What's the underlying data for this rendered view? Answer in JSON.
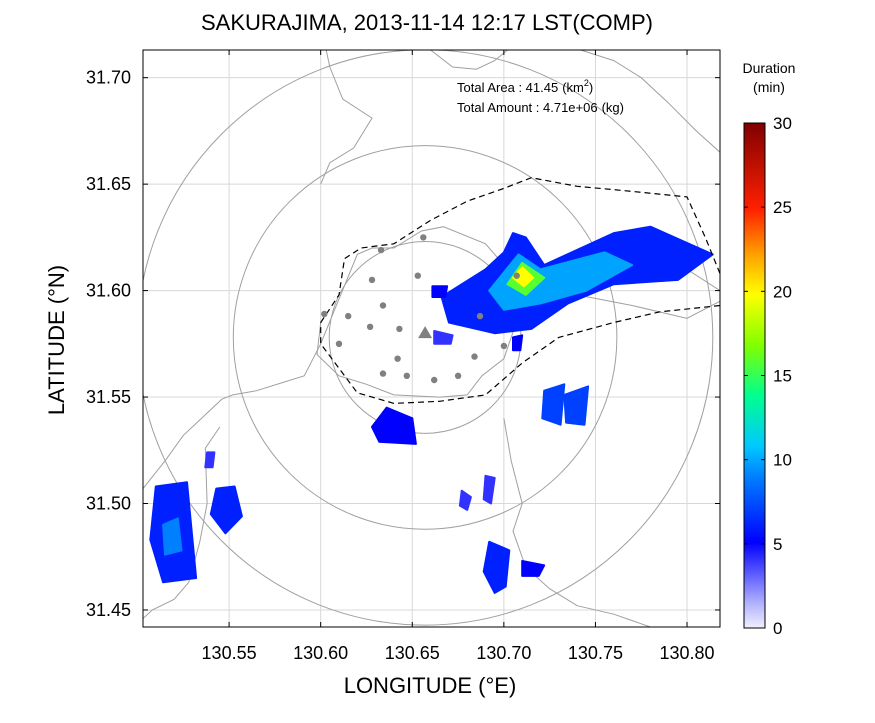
{
  "chart_data": {
    "type": "heatmap",
    "title": "SAKURAJIMA, 2013-11-14 12:17 LST(COMP)",
    "xlabel": "LONGITUDE (°E)",
    "ylabel": "LATITUDE (°N)",
    "xlim": [
      130.503,
      130.818
    ],
    "ylim": [
      31.442,
      31.713
    ],
    "xticks": [
      130.55,
      130.6,
      130.65,
      130.7,
      130.75,
      130.8
    ],
    "xtick_labels": [
      "130.55",
      "130.60",
      "130.65",
      "130.70",
      "130.75",
      "130.80"
    ],
    "yticks": [
      31.45,
      31.5,
      31.55,
      31.6,
      31.65,
      31.7
    ],
    "ytick_labels": [
      "31.45",
      "31.50",
      "31.55",
      "31.60",
      "31.65",
      "31.70"
    ],
    "grid": true,
    "annotation": {
      "area_label": "Total Area",
      "area_sep": " : ",
      "area_value": "41.45",
      "area_unit_base": "(km",
      "area_unit_exp": "2",
      "area_unit_close": ")",
      "amount_label": "Total Amount",
      "amount_sep": " : ",
      "amount_value": "4.71e+06",
      "amount_unit": "(kg)"
    },
    "colorbar": {
      "title_line1": "Duration",
      "title_line2": "(min)",
      "min": 0,
      "max": 30,
      "ticks": [
        0,
        5,
        10,
        15,
        20,
        25,
        30
      ],
      "tick_labels": [
        "0",
        "5",
        "10",
        "15",
        "20",
        "25",
        "30"
      ],
      "colors": [
        "#e8e8ff",
        "#0000ff",
        "#00c8ff",
        "#00ff80",
        "#ffff00",
        "#ff8000",
        "#ff0000",
        "#800000"
      ]
    },
    "range_rings": {
      "center": [
        130.657,
        31.578
      ],
      "radii_km": [
        5,
        10,
        15
      ]
    },
    "vent": [
      130.657,
      31.58
    ],
    "stations": [
      [
        130.628,
        31.605
      ],
      [
        130.633,
        31.619
      ],
      [
        130.656,
        31.625
      ],
      [
        130.653,
        31.607
      ],
      [
        130.602,
        31.589
      ],
      [
        130.615,
        31.588
      ],
      [
        130.627,
        31.583
      ],
      [
        130.634,
        31.593
      ],
      [
        130.643,
        31.582
      ],
      [
        130.61,
        31.575
      ],
      [
        130.642,
        31.568
      ],
      [
        130.634,
        31.561
      ],
      [
        130.647,
        31.56
      ],
      [
        130.662,
        31.558
      ],
      [
        130.675,
        31.56
      ],
      [
        130.684,
        31.569
      ],
      [
        130.687,
        31.588
      ],
      [
        130.7,
        31.574
      ],
      [
        130.707,
        31.607
      ]
    ],
    "deposits": [
      {
        "name": "main-plume",
        "polygon": [
          [
            130.666,
            31.597
          ],
          [
            130.69,
            31.61
          ],
          [
            130.7,
            31.618
          ],
          [
            130.705,
            31.627
          ],
          [
            130.712,
            31.625
          ],
          [
            130.722,
            31.612
          ],
          [
            130.76,
            31.627
          ],
          [
            130.78,
            31.63
          ],
          [
            130.814,
            31.617
          ],
          [
            130.795,
            31.605
          ],
          [
            130.76,
            31.603
          ],
          [
            130.735,
            31.594
          ],
          [
            130.715,
            31.582
          ],
          [
            130.695,
            31.58
          ],
          [
            130.67,
            31.585
          ]
        ],
        "duration": 6
      },
      {
        "name": "plume-mid",
        "polygon": [
          [
            130.692,
            31.6
          ],
          [
            130.708,
            31.617
          ],
          [
            130.72,
            31.61
          ],
          [
            130.755,
            31.618
          ],
          [
            130.77,
            31.612
          ],
          [
            130.745,
            31.6
          ],
          [
            130.72,
            31.594
          ],
          [
            130.7,
            31.591
          ]
        ],
        "duration": 10
      },
      {
        "name": "plume-core",
        "polygon": [
          [
            130.702,
            31.603
          ],
          [
            130.71,
            31.613
          ],
          [
            130.722,
            31.606
          ],
          [
            130.712,
            31.598
          ]
        ],
        "duration": 16
      },
      {
        "name": "plume-peak",
        "polygon": [
          [
            130.705,
            31.606
          ],
          [
            130.71,
            31.611
          ],
          [
            130.716,
            31.606
          ],
          [
            130.711,
            31.602
          ]
        ],
        "duration": 20
      },
      {
        "name": "patch-small",
        "polygon": [
          [
            130.705,
            31.578
          ],
          [
            130.71,
            31.579
          ],
          [
            130.709,
            31.572
          ],
          [
            130.705,
            31.572
          ]
        ],
        "duration": 5
      },
      {
        "name": "patch-west",
        "polygon": [
          [
            130.636,
            31.545
          ],
          [
            130.65,
            31.54
          ],
          [
            130.652,
            31.528
          ],
          [
            130.632,
            31.529
          ],
          [
            130.628,
            31.536
          ]
        ],
        "duration": 5
      },
      {
        "name": "patch-east-1",
        "polygon": [
          [
            130.722,
            31.553
          ],
          [
            130.733,
            31.556
          ],
          [
            130.731,
            31.537
          ],
          [
            130.721,
            31.54
          ]
        ],
        "duration": 7
      },
      {
        "name": "patch-east-2",
        "polygon": [
          [
            130.733,
            31.551
          ],
          [
            130.746,
            31.555
          ],
          [
            130.744,
            31.537
          ],
          [
            130.734,
            31.538
          ]
        ],
        "duration": 7
      },
      {
        "name": "patch-far-west",
        "polygon": [
          [
            130.51,
            31.508
          ],
          [
            130.527,
            31.51
          ],
          [
            130.532,
            31.465
          ],
          [
            130.514,
            31.463
          ],
          [
            130.507,
            31.483
          ]
        ],
        "duration": 6
      },
      {
        "name": "patch-far-west-core",
        "polygon": [
          [
            130.514,
            31.49
          ],
          [
            130.522,
            31.493
          ],
          [
            130.524,
            31.478
          ],
          [
            130.515,
            31.476
          ]
        ],
        "duration": 9
      },
      {
        "name": "patch-oval",
        "polygon": [
          [
            130.543,
            31.507
          ],
          [
            130.553,
            31.508
          ],
          [
            130.557,
            31.494
          ],
          [
            130.548,
            31.486
          ],
          [
            130.54,
            31.495
          ]
        ],
        "duration": 6
      },
      {
        "name": "patch-south",
        "polygon": [
          [
            130.692,
            31.482
          ],
          [
            130.703,
            31.478
          ],
          [
            130.701,
            31.461
          ],
          [
            130.695,
            31.458
          ],
          [
            130.689,
            31.468
          ]
        ],
        "duration": 6
      },
      {
        "name": "patch-south-2",
        "polygon": [
          [
            130.71,
            31.473
          ],
          [
            130.722,
            31.471
          ],
          [
            130.719,
            31.466
          ],
          [
            130.71,
            31.466
          ]
        ],
        "duration": 5
      },
      {
        "name": "speckle-1",
        "polygon": [
          [
            130.677,
            31.506
          ],
          [
            130.682,
            31.503
          ],
          [
            130.68,
            31.497
          ],
          [
            130.676,
            31.499
          ]
        ],
        "duration": 4
      },
      {
        "name": "speckle-2",
        "polygon": [
          [
            130.69,
            31.513
          ],
          [
            130.695,
            31.512
          ],
          [
            130.693,
            31.5
          ],
          [
            130.689,
            31.502
          ]
        ],
        "duration": 4
      },
      {
        "name": "speckle-3",
        "polygon": [
          [
            130.662,
            31.581
          ],
          [
            130.672,
            31.579
          ],
          [
            130.671,
            31.575
          ],
          [
            130.662,
            31.575
          ]
        ],
        "duration": 4
      },
      {
        "name": "speckle-4",
        "polygon": [
          [
            130.661,
            31.602
          ],
          [
            130.669,
            31.602
          ],
          [
            130.668,
            31.597
          ],
          [
            130.661,
            31.597
          ]
        ],
        "duration": 5
      },
      {
        "name": "speckle-5",
        "polygon": [
          [
            130.538,
            31.524
          ],
          [
            130.542,
            31.524
          ],
          [
            130.541,
            31.517
          ],
          [
            130.537,
            31.517
          ]
        ],
        "duration": 4
      }
    ],
    "coastlines": [
      [
        [
          130.503,
          31.507
        ],
        [
          130.515,
          31.52
        ],
        [
          130.525,
          31.532
        ],
        [
          130.535,
          31.54
        ],
        [
          130.546,
          31.549
        ],
        [
          130.552,
          31.551
        ],
        [
          130.565,
          31.553
        ],
        [
          130.58,
          31.557
        ],
        [
          130.591,
          31.56
        ],
        [
          130.6,
          31.575
        ],
        [
          130.61,
          31.596
        ],
        [
          130.62,
          31.617
        ],
        [
          130.628,
          31.62
        ],
        [
          130.64,
          31.62
        ],
        [
          130.655,
          31.628
        ],
        [
          130.667,
          31.63
        ],
        [
          130.69,
          31.622
        ],
        [
          130.7,
          31.612
        ],
        [
          130.715,
          31.603
        ],
        [
          130.74,
          31.598
        ],
        [
          130.77,
          31.593
        ],
        [
          130.8,
          31.587
        ],
        [
          130.818,
          31.595
        ]
      ],
      [
        [
          130.818,
          31.6
        ],
        [
          130.8,
          31.61
        ],
        [
          130.78,
          31.615
        ],
        [
          130.76,
          31.614
        ],
        [
          130.74,
          31.61
        ],
        [
          130.722,
          31.605
        ],
        [
          130.71,
          31.596
        ],
        [
          130.706,
          31.583
        ],
        [
          130.7,
          31.568
        ],
        [
          130.688,
          31.56
        ],
        [
          130.68,
          31.551
        ],
        [
          130.665,
          31.55
        ],
        [
          130.64,
          31.551
        ],
        [
          130.625,
          31.556
        ],
        [
          130.61,
          31.56
        ],
        [
          130.598,
          31.57
        ],
        [
          130.6,
          31.585
        ]
      ],
      [
        [
          130.6,
          31.65
        ],
        [
          130.605,
          31.66
        ],
        [
          130.618,
          31.667
        ],
        [
          130.628,
          31.681
        ],
        [
          130.612,
          31.69
        ],
        [
          130.605,
          31.705
        ],
        [
          130.603,
          31.713
        ]
      ],
      [
        [
          130.7,
          31.54
        ],
        [
          130.704,
          31.52
        ],
        [
          130.71,
          31.5
        ],
        [
          130.705,
          31.487
        ],
        [
          130.712,
          31.47
        ],
        [
          130.725,
          31.46
        ],
        [
          130.74,
          31.452
        ],
        [
          130.76,
          31.448
        ],
        [
          130.78,
          31.442
        ]
      ],
      [
        [
          130.545,
          31.536
        ],
        [
          130.537,
          31.526
        ],
        [
          130.538,
          31.5
        ],
        [
          130.534,
          31.482
        ],
        [
          130.528,
          31.463
        ],
        [
          130.52,
          31.455
        ],
        [
          130.508,
          31.45
        ],
        [
          130.503,
          31.446
        ]
      ],
      [
        [
          130.742,
          31.713
        ],
        [
          130.76,
          31.708
        ],
        [
          130.775,
          31.7
        ],
        [
          130.79,
          31.688
        ],
        [
          130.805,
          31.675
        ],
        [
          130.818,
          31.665
        ]
      ],
      [
        [
          130.66,
          31.713
        ],
        [
          130.672,
          31.705
        ],
        [
          130.685,
          31.704
        ],
        [
          130.695,
          31.708
        ],
        [
          130.702,
          31.713
        ]
      ]
    ],
    "dashed_outline": [
      [
        130.6,
        31.585
      ],
      [
        130.61,
        31.598
      ],
      [
        130.613,
        31.615
      ],
      [
        130.622,
        31.62
      ],
      [
        130.64,
        31.622
      ],
      [
        130.66,
        31.633
      ],
      [
        130.68,
        31.642
      ],
      [
        130.7,
        31.648
      ],
      [
        130.715,
        31.653
      ],
      [
        130.74,
        31.649
      ],
      [
        130.765,
        31.647
      ],
      [
        130.8,
        31.644
      ],
      [
        130.81,
        31.625
      ],
      [
        130.818,
        31.608
      ]
    ],
    "dashed_outline_2": [
      [
        130.818,
        31.593
      ],
      [
        130.785,
        31.59
      ],
      [
        130.76,
        31.585
      ],
      [
        130.73,
        31.578
      ],
      [
        130.71,
        31.566
      ],
      [
        130.69,
        31.551
      ],
      [
        130.665,
        31.548
      ],
      [
        130.64,
        31.547
      ],
      [
        130.62,
        31.552
      ],
      [
        130.6,
        31.575
      ],
      [
        130.6,
        31.585
      ]
    ]
  }
}
